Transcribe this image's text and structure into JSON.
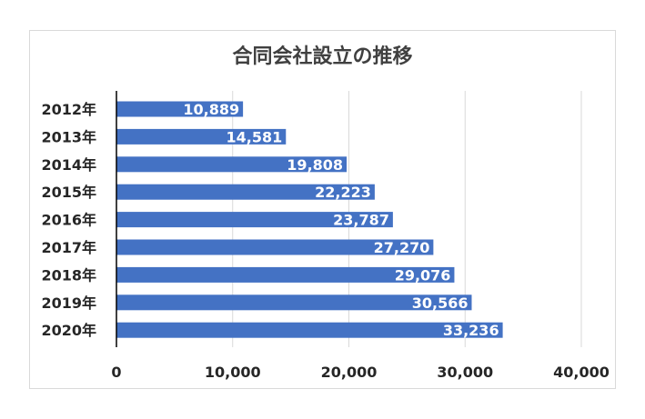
{
  "chart_data": {
    "type": "bar",
    "orientation": "horizontal",
    "title": "合同会社設立の推移",
    "categories": [
      "2012年",
      "2013年",
      "2014年",
      "2015年",
      "2016年",
      "2017年",
      "2018年",
      "2019年",
      "2020年"
    ],
    "values": [
      10889,
      14581,
      19808,
      22223,
      23787,
      27270,
      29076,
      30566,
      33236
    ],
    "value_labels": [
      "10,889",
      "14,581",
      "19,808",
      "22,223",
      "23,787",
      "27,270",
      "29,076",
      "30,566",
      "33,236"
    ],
    "xlim": [
      0,
      40000
    ],
    "x_ticks": [
      0,
      10000,
      20000,
      30000,
      40000
    ],
    "x_tick_labels": [
      "0",
      "10,000",
      "20,000",
      "30,000",
      "40,000"
    ],
    "xlabel": "",
    "ylabel": "",
    "grid": true,
    "legend": "none",
    "bar_color": "#4472c4",
    "grid_color": "#d9d9d9",
    "axis_color": "#000000"
  }
}
